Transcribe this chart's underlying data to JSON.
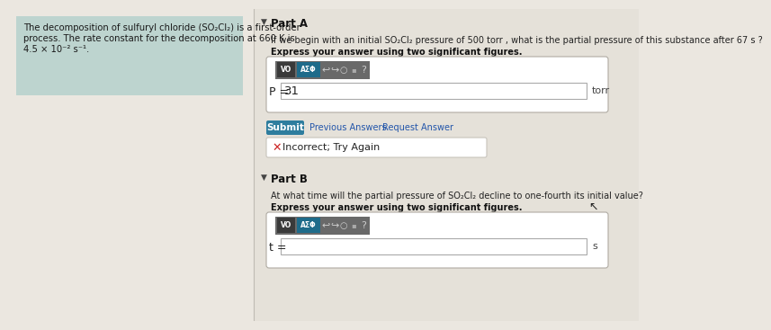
{
  "bg_color": "#ebe7e0",
  "left_panel_color": "#bdd4cf",
  "left_panel_text_line1": "The decomposition of sulfuryl chloride (SO₂Cl₂) is a first-order",
  "left_panel_text_line2": "process. The rate constant for the decomposition at 660 K is",
  "left_panel_text_line3": "4.5 × 10⁻² s⁻¹.",
  "right_bg_color": "#e5e1d9",
  "part_a_label": "Part A",
  "part_a_q1": "If we begin with an initial SO₂Cl₂ pressure of 500 torr , what is the partial pressure of this substance after 67 s ?",
  "part_a_q2": "Express your answer using two significant figures.",
  "part_a_p_label": "P =",
  "part_a_answer": "31",
  "part_a_unit": "torr",
  "submit_color": "#2e7d9e",
  "submit_text": "Submit",
  "prev_text": "Previous Answers",
  "req_text": "Request Answer",
  "incorrect_text": "Incorrect; Try Again",
  "part_b_label": "Part B",
  "part_b_q1": "At what time will the partial pressure of SO₂Cl₂ decline to one-fourth its initial value?",
  "part_b_q2": "Express your answer using two significant figures.",
  "part_b_t_label": "t =",
  "part_b_unit": "s",
  "toolbar_dark": "#3a3a3a",
  "toolbar_teal": "#1e6b8a",
  "toolbar_gray": "#888888",
  "vo_label": "VO",
  "asf_label": "AΣΦ"
}
